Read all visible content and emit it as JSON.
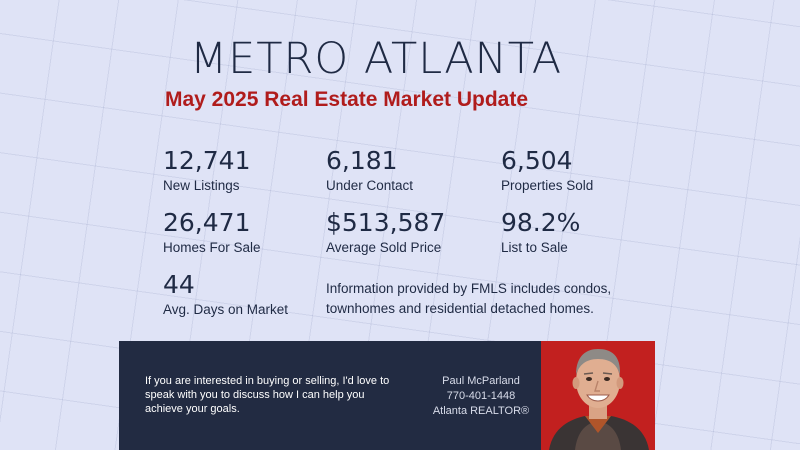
{
  "header": {
    "title": "METRO ATLANTA",
    "subtitle": "May 2025 Real Estate Market Update"
  },
  "stats": [
    {
      "value": "12,741",
      "label": "New Listings"
    },
    {
      "value": "6,181",
      "label": "Under Contact"
    },
    {
      "value": "6,504",
      "label": "Properties Sold"
    },
    {
      "value": "26,471",
      "label": "Homes For Sale"
    },
    {
      "value": "$513,587",
      "label": "Average Sold Price"
    },
    {
      "value": "98.2%",
      "label": "List to Sale"
    },
    {
      "value": "44",
      "label": "Avg. Days on Market"
    }
  ],
  "info": {
    "line1": "Information provided by FMLS includes condos,",
    "line2": "townhomes and residential detached homes."
  },
  "banner": {
    "message_lines": [
      "If you are interested in buying or selling, I'd love to",
      "speak with you to discuss how I can help you",
      "achieve your goals."
    ],
    "agent_name": "Paul McParland",
    "phone": "770-401-1448",
    "role": "Atlanta REALTOR®"
  },
  "colors": {
    "background": "#dfe3f6",
    "title": "#1f2a44",
    "subtitle": "#b01c1c",
    "banner": "#222b42",
    "photo_background": "#c2201f"
  },
  "images": {
    "agent_photo": "agent-portrait"
  }
}
